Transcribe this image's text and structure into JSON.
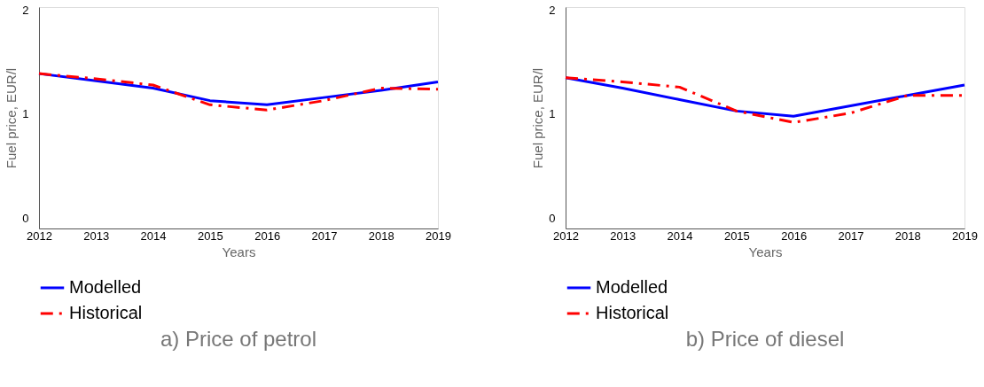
{
  "chart_data": [
    {
      "type": "line",
      "title": "a)    Price of petrol",
      "xlabel": "Years",
      "ylabel": "Fuel price, EUR/l",
      "x": [
        2012,
        2013,
        2014,
        2015,
        2016,
        2017,
        2018,
        2019
      ],
      "xlim": [
        2012,
        2019
      ],
      "xticks": [
        2012,
        2013,
        2014,
        2015,
        2016,
        2017,
        2018,
        2019
      ],
      "ylim": [
        -0.1,
        2.03
      ],
      "yticks": [
        0,
        1,
        2
      ],
      "grid": false,
      "legend": "bottom",
      "series": [
        {
          "name": "Modelled",
          "color": "#0000ff",
          "line_style": "solid",
          "values": [
            1.39,
            1.32,
            1.25,
            1.13,
            1.09,
            1.16,
            1.23,
            1.31
          ]
        },
        {
          "name": "Historical",
          "color": "#ff0000",
          "line_style": "dashed",
          "values": [
            1.39,
            1.34,
            1.28,
            1.09,
            1.04,
            1.13,
            1.25,
            1.24
          ]
        }
      ]
    },
    {
      "type": "line",
      "title": "b)    Price of diesel",
      "xlabel": "Years",
      "ylabel": "Fuel price, EUR/l",
      "x": [
        2012,
        2013,
        2014,
        2015,
        2016,
        2017,
        2018,
        2019
      ],
      "xlim": [
        2012,
        2019
      ],
      "xticks": [
        2012,
        2013,
        2014,
        2015,
        2016,
        2017,
        2018,
        2019
      ],
      "ylim": [
        -0.1,
        2.03
      ],
      "yticks": [
        0,
        1,
        2
      ],
      "grid": false,
      "legend": "bottom",
      "series": [
        {
          "name": "Modelled",
          "color": "#0000ff",
          "line_style": "solid",
          "values": [
            1.35,
            1.25,
            1.14,
            1.03,
            0.98,
            1.08,
            1.18,
            1.28
          ]
        },
        {
          "name": "Historical",
          "color": "#ff0000",
          "line_style": "dashed",
          "values": [
            1.35,
            1.31,
            1.26,
            1.03,
            0.92,
            1.01,
            1.18,
            1.18
          ]
        }
      ]
    }
  ]
}
